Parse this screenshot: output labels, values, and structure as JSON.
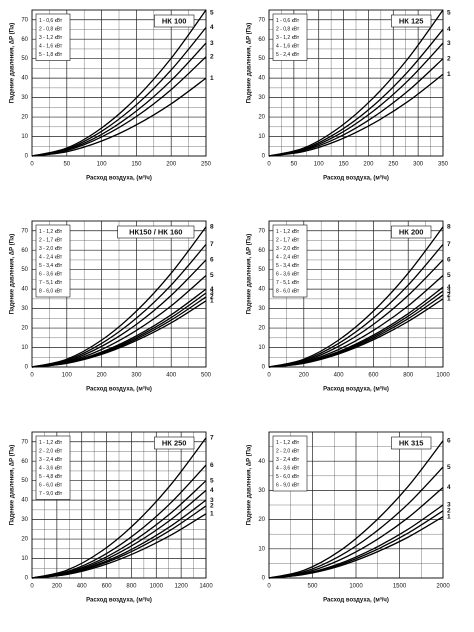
{
  "chart_data": [
    {
      "type": "line",
      "title": "НК 100",
      "x_label": "Расход воздуха, (м³/ч)",
      "y_label": "Падение давления, ΔP (Па)",
      "x": [
        0,
        50,
        100,
        150,
        200,
        250
      ],
      "xlim": [
        0,
        250
      ],
      "ylim": [
        0,
        75
      ],
      "xticks": [
        0,
        50,
        100,
        150,
        200,
        250
      ],
      "yticks": [
        0,
        10,
        20,
        30,
        40,
        50,
        60,
        70
      ],
      "grid": true,
      "legend": "upper left",
      "series": [
        {
          "name": "1 - 0,6 кВт",
          "label": "1",
          "color": "#000000",
          "values": [
            0,
            2.2,
            7.7,
            16,
            26.8,
            40
          ]
        },
        {
          "name": "2 - 0,8 кВт",
          "label": "2",
          "color": "#000000",
          "values": [
            0,
            2.8,
            9.8,
            20.3,
            34.1,
            51
          ]
        },
        {
          "name": "3 - 1,2 кВт",
          "label": "3",
          "color": "#000000",
          "values": [
            0,
            3.2,
            11.1,
            23.1,
            38.8,
            58
          ]
        },
        {
          "name": "4 - 1,6 кВт",
          "label": "4",
          "color": "#000000",
          "values": [
            0,
            3.6,
            12.7,
            26.3,
            44.2,
            66
          ]
        },
        {
          "name": "5 - 1,8 кВт",
          "label": "5",
          "color": "#000000",
          "values": [
            0,
            4.1,
            14.4,
            29.9,
            50.2,
            75
          ]
        }
      ]
    },
    {
      "type": "line",
      "title": "НК 125",
      "x_label": "Расход воздуха, (м³/ч)",
      "y_label": "Падение давления, ΔP (Па)",
      "x": [
        0,
        70,
        140,
        210,
        280,
        350
      ],
      "xlim": [
        0,
        350
      ],
      "ylim": [
        0,
        75
      ],
      "xticks": [
        0,
        50,
        100,
        150,
        200,
        250,
        300,
        350
      ],
      "yticks": [
        0,
        10,
        20,
        30,
        40,
        50,
        60,
        70
      ],
      "grid": true,
      "legend": "upper left",
      "series": [
        {
          "name": "1 - 0,6 кВт",
          "label": "1",
          "color": "#000000",
          "values": [
            0,
            2.3,
            8.1,
            16.8,
            28.1,
            42
          ]
        },
        {
          "name": "2 - 0,8 кВт",
          "label": "2",
          "color": "#000000",
          "values": [
            0,
            2.8,
            9.6,
            20,
            33.5,
            50
          ]
        },
        {
          "name": "3 - 1,2 кВт",
          "label": "3",
          "color": "#000000",
          "values": [
            0,
            3.2,
            11.1,
            23.1,
            38.8,
            58
          ]
        },
        {
          "name": "4 - 1,6 кВт",
          "label": "4",
          "color": "#000000",
          "values": [
            0,
            3.6,
            12.5,
            25.9,
            43.5,
            65
          ]
        },
        {
          "name": "5 - 2,4 кВт",
          "label": "5",
          "color": "#000000",
          "values": [
            0,
            4.1,
            14.4,
            29.9,
            50.2,
            75
          ]
        }
      ]
    },
    {
      "type": "line",
      "title": "НК150 / НК 160",
      "x_label": "Расход воздуха, (м³/ч)",
      "y_label": "Падение давления, ΔP (Па)",
      "x": [
        0,
        100,
        200,
        300,
        400,
        500
      ],
      "xlim": [
        0,
        500
      ],
      "ylim": [
        0,
        75
      ],
      "xticks": [
        0,
        100,
        200,
        300,
        400,
        500
      ],
      "yticks": [
        0,
        10,
        20,
        30,
        40,
        50,
        60,
        70
      ],
      "grid": true,
      "legend": "upper left",
      "series": [
        {
          "name": "1 - 1,2 кВт",
          "label": "1",
          "color": "#000000",
          "values": [
            0,
            1.9,
            6.5,
            13.6,
            22.7,
            34
          ]
        },
        {
          "name": "2 - 1,7 кВт",
          "label": "2",
          "color": "#000000",
          "values": [
            0,
            2,
            6.9,
            14.4,
            24.1,
            36
          ]
        },
        {
          "name": "3 - 2,0 кВт",
          "label": "3",
          "color": "#000000",
          "values": [
            0,
            2.1,
            7.3,
            15.2,
            25.4,
            38
          ]
        },
        {
          "name": "4 - 2,4 кВт",
          "label": "4",
          "color": "#000000",
          "values": [
            0,
            2.2,
            7.7,
            16,
            26.8,
            40
          ]
        },
        {
          "name": "5 - 3,4 кВт",
          "label": "5",
          "color": "#000000",
          "values": [
            0,
            2.6,
            9,
            18.8,
            31.4,
            47
          ]
        },
        {
          "name": "6 - 3,6 кВт",
          "label": "6",
          "color": "#000000",
          "values": [
            0,
            3,
            10.6,
            21.9,
            36.8,
            55
          ]
        },
        {
          "name": "7 - 5,1 кВт",
          "label": "7",
          "color": "#000000",
          "values": [
            0,
            3.5,
            12.1,
            25.1,
            42.1,
            63
          ]
        },
        {
          "name": "8 - 6,0 кВт",
          "label": "8",
          "color": "#000000",
          "values": [
            0,
            4,
            13.8,
            28.7,
            48.2,
            72
          ]
        }
      ]
    },
    {
      "type": "line",
      "title": "НК 200",
      "x_label": "Расход воздуха, (м³/ч)",
      "y_label": "Падение давления, ΔP (Па)",
      "x": [
        0,
        200,
        400,
        600,
        800,
        1000
      ],
      "xlim": [
        0,
        1000
      ],
      "ylim": [
        0,
        75
      ],
      "xticks": [
        0,
        200,
        400,
        600,
        800,
        1000
      ],
      "yticks": [
        0,
        10,
        20,
        30,
        40,
        50,
        60,
        70
      ],
      "grid": true,
      "legend": "upper left",
      "series": [
        {
          "name": "1 - 1,2 кВт",
          "label": "1",
          "color": "#000000",
          "values": [
            0,
            1.9,
            6.7,
            14,
            23.4,
            35
          ]
        },
        {
          "name": "2 - 1,7 кВт",
          "label": "2",
          "color": "#000000",
          "values": [
            0,
            2,
            7.1,
            14.8,
            24.8,
            37
          ]
        },
        {
          "name": "3 - 2,0 кВт",
          "label": "3",
          "color": "#000000",
          "values": [
            0,
            2.1,
            7.5,
            15.6,
            26.1,
            39
          ]
        },
        {
          "name": "4 - 2,4 кВт",
          "label": "4",
          "color": "#000000",
          "values": [
            0,
            2.3,
            7.9,
            16.4,
            27.4,
            41
          ]
        },
        {
          "name": "5 - 3,4 кВт",
          "label": "5",
          "color": "#000000",
          "values": [
            0,
            2.6,
            9,
            18.8,
            31.4,
            47
          ]
        },
        {
          "name": "6 - 3,6 кВт",
          "label": "6",
          "color": "#000000",
          "values": [
            0,
            3,
            10.6,
            21.9,
            36.8,
            55
          ]
        },
        {
          "name": "7 - 5,1 кВт",
          "label": "7",
          "color": "#000000",
          "values": [
            0,
            3.5,
            12.1,
            25.1,
            42.1,
            63
          ]
        },
        {
          "name": "8 - 6,0 кВт",
          "label": "8",
          "color": "#000000",
          "values": [
            0,
            4,
            13.8,
            28.7,
            48.2,
            72
          ]
        }
      ]
    },
    {
      "type": "line",
      "title": "НК 250",
      "x_label": "Расход воздуха, (м³/ч)",
      "y_label": "Падение давления, ΔP (Па)",
      "x": [
        0,
        280,
        560,
        840,
        1120,
        1400
      ],
      "xlim": [
        0,
        1400
      ],
      "ylim": [
        0,
        75
      ],
      "xticks": [
        0,
        200,
        400,
        600,
        800,
        1000,
        1200,
        1400
      ],
      "yticks": [
        0,
        10,
        20,
        30,
        40,
        50,
        60,
        70
      ],
      "grid": true,
      "legend": "upper left",
      "series": [
        {
          "name": "1 - 1,2 кВт",
          "label": "1",
          "color": "#000000",
          "values": [
            0,
            1.8,
            6.3,
            13.2,
            22.1,
            33
          ]
        },
        {
          "name": "2 - 2,0 кВт",
          "label": "2",
          "color": "#000000",
          "values": [
            0,
            2,
            7.1,
            14.8,
            24.8,
            37
          ]
        },
        {
          "name": "3 - 2,4 кВт",
          "label": "3",
          "color": "#000000",
          "values": [
            0,
            2.2,
            7.7,
            16,
            26.8,
            40
          ]
        },
        {
          "name": "4 - 3,6 кВт",
          "label": "4",
          "color": "#000000",
          "values": [
            0,
            2.5,
            8.6,
            18,
            30.1,
            45
          ]
        },
        {
          "name": "5 - 4,8 кВт",
          "label": "5",
          "color": "#000000",
          "values": [
            0,
            2.8,
            9.6,
            20,
            33.5,
            50
          ]
        },
        {
          "name": "6 - 6,0 кВт",
          "label": "6",
          "color": "#000000",
          "values": [
            0,
            3.2,
            11.1,
            23.1,
            38.8,
            58
          ]
        },
        {
          "name": "7 - 9,0 кВт",
          "label": "7",
          "color": "#000000",
          "values": [
            0,
            4,
            13.8,
            28.7,
            48.2,
            72
          ]
        }
      ]
    },
    {
      "type": "line",
      "title": "НК 315",
      "x_label": "Расход воздуха, (м³/ч)",
      "y_label": "Падение давления, ΔP (Па)",
      "x": [
        0,
        400,
        800,
        1200,
        1600,
        2000
      ],
      "xlim": [
        0,
        2000
      ],
      "ylim": [
        0,
        50
      ],
      "xticks": [
        0,
        500,
        1000,
        1500,
        2000
      ],
      "yticks": [
        0,
        10,
        20,
        30,
        40
      ],
      "grid": true,
      "legend": "upper left",
      "series": [
        {
          "name": "1 - 1,2 кВт",
          "label": "1",
          "color": "#000000",
          "values": [
            0,
            1.2,
            4,
            8.4,
            14,
            21
          ]
        },
        {
          "name": "2 - 2,0 кВт",
          "label": "2",
          "color": "#000000",
          "values": [
            0,
            1.3,
            4.4,
            9.2,
            15.4,
            23
          ]
        },
        {
          "name": "3 - 2,4 кВт",
          "label": "3",
          "color": "#000000",
          "values": [
            0,
            1.4,
            4.8,
            10,
            16.7,
            25
          ]
        },
        {
          "name": "4 - 3,6 кВт",
          "label": "4",
          "color": "#000000",
          "values": [
            0,
            1.7,
            6,
            12.4,
            20.7,
            31
          ]
        },
        {
          "name": "5 - 6,0 кВт",
          "label": "5",
          "color": "#000000",
          "values": [
            0,
            2.1,
            7.3,
            15.2,
            25.4,
            38
          ]
        },
        {
          "name": "6 - 9,0 кВт",
          "label": "6",
          "color": "#000000",
          "values": [
            0,
            2.6,
            9,
            18.8,
            31.4,
            47
          ]
        }
      ]
    }
  ]
}
